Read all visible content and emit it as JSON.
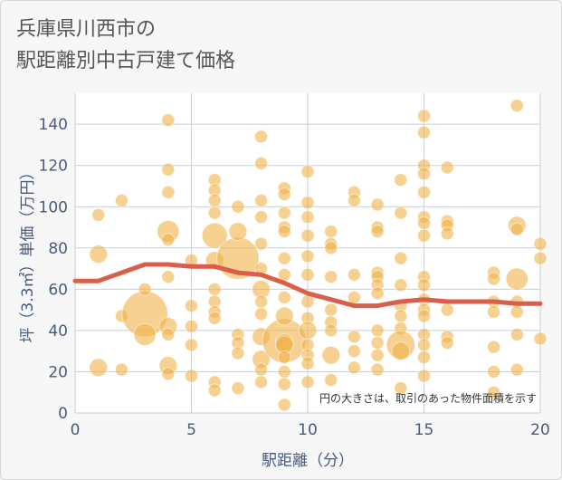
{
  "title_lines": [
    "兵庫県川西市の",
    "駅距離別中古戸建て価格"
  ],
  "annotation": "円の大きさは、取引のあった物件面積を示す",
  "colors": {
    "bubble": "#f0b24a",
    "line": "#d95f4b",
    "grid": "#c7cfd9",
    "plot_bg": "#ffffff"
  },
  "chart_data": {
    "type": "scatter",
    "title": "兵庫県川西市の 駅距離別中古戸建て価格",
    "xlabel": "駅距離（分）",
    "ylabel": "坪（3.3㎡）単価（万円）",
    "xlim": [
      0,
      20
    ],
    "ylim": [
      0,
      155
    ],
    "xticks": [
      0,
      5,
      10,
      15,
      20
    ],
    "yticks": [
      0,
      20,
      40,
      60,
      80,
      100,
      120,
      140
    ],
    "grid": true,
    "points": [
      {
        "x": 1,
        "y": 96,
        "s": 1
      },
      {
        "x": 1,
        "y": 77,
        "s": 2
      },
      {
        "x": 1,
        "y": 22,
        "s": 2
      },
      {
        "x": 2,
        "y": 103,
        "s": 1
      },
      {
        "x": 2,
        "y": 47,
        "s": 1
      },
      {
        "x": 2,
        "y": 21,
        "s": 1
      },
      {
        "x": 3,
        "y": 48,
        "s": 13
      },
      {
        "x": 3,
        "y": 60,
        "s": 1
      },
      {
        "x": 3,
        "y": 38,
        "s": 3
      },
      {
        "x": 4,
        "y": 142,
        "s": 1
      },
      {
        "x": 4,
        "y": 118,
        "s": 1
      },
      {
        "x": 4,
        "y": 107,
        "s": 1
      },
      {
        "x": 4,
        "y": 88,
        "s": 3
      },
      {
        "x": 4,
        "y": 84,
        "s": 1
      },
      {
        "x": 4,
        "y": 66,
        "s": 1
      },
      {
        "x": 4,
        "y": 42,
        "s": 2
      },
      {
        "x": 4,
        "y": 38,
        "s": 1
      },
      {
        "x": 4,
        "y": 23,
        "s": 2
      },
      {
        "x": 4,
        "y": 19,
        "s": 1
      },
      {
        "x": 5,
        "y": 74,
        "s": 1
      },
      {
        "x": 5,
        "y": 52,
        "s": 1
      },
      {
        "x": 5,
        "y": 42,
        "s": 1
      },
      {
        "x": 5,
        "y": 33,
        "s": 1
      },
      {
        "x": 5,
        "y": 18,
        "s": 1
      },
      {
        "x": 6,
        "y": 113,
        "s": 1
      },
      {
        "x": 6,
        "y": 108,
        "s": 1
      },
      {
        "x": 6,
        "y": 103,
        "s": 1
      },
      {
        "x": 6,
        "y": 97,
        "s": 1
      },
      {
        "x": 6,
        "y": 86,
        "s": 4
      },
      {
        "x": 6,
        "y": 74,
        "s": 2
      },
      {
        "x": 6,
        "y": 60,
        "s": 1
      },
      {
        "x": 6,
        "y": 54,
        "s": 1
      },
      {
        "x": 6,
        "y": 49,
        "s": 1
      },
      {
        "x": 6,
        "y": 46,
        "s": 1
      },
      {
        "x": 6,
        "y": 15,
        "s": 1
      },
      {
        "x": 6,
        "y": 11,
        "s": 1
      },
      {
        "x": 7,
        "y": 75,
        "s": 11
      },
      {
        "x": 7,
        "y": 100,
        "s": 1
      },
      {
        "x": 7,
        "y": 88,
        "s": 2
      },
      {
        "x": 7,
        "y": 38,
        "s": 1
      },
      {
        "x": 7,
        "y": 34,
        "s": 1
      },
      {
        "x": 7,
        "y": 29,
        "s": 1
      },
      {
        "x": 7,
        "y": 12,
        "s": 1
      },
      {
        "x": 8,
        "y": 134,
        "s": 1
      },
      {
        "x": 8,
        "y": 121,
        "s": 1
      },
      {
        "x": 8,
        "y": 103,
        "s": 1
      },
      {
        "x": 8,
        "y": 95,
        "s": 1
      },
      {
        "x": 8,
        "y": 82,
        "s": 1
      },
      {
        "x": 8,
        "y": 70,
        "s": 1
      },
      {
        "x": 8,
        "y": 60,
        "s": 2
      },
      {
        "x": 8,
        "y": 54,
        "s": 1
      },
      {
        "x": 8,
        "y": 48,
        "s": 1
      },
      {
        "x": 8,
        "y": 37,
        "s": 2
      },
      {
        "x": 8,
        "y": 26,
        "s": 2
      },
      {
        "x": 8,
        "y": 21,
        "s": 1
      },
      {
        "x": 8,
        "y": 15,
        "s": 1
      },
      {
        "x": 9,
        "y": 35,
        "s": 12
      },
      {
        "x": 9,
        "y": 109,
        "s": 1
      },
      {
        "x": 9,
        "y": 106,
        "s": 1
      },
      {
        "x": 9,
        "y": 97,
        "s": 1
      },
      {
        "x": 9,
        "y": 90,
        "s": 1
      },
      {
        "x": 9,
        "y": 88,
        "s": 1
      },
      {
        "x": 9,
        "y": 75,
        "s": 1
      },
      {
        "x": 9,
        "y": 67,
        "s": 1
      },
      {
        "x": 9,
        "y": 56,
        "s": 1
      },
      {
        "x": 9,
        "y": 47,
        "s": 2
      },
      {
        "x": 9,
        "y": 34,
        "s": 2
      },
      {
        "x": 9,
        "y": 33,
        "s": 2
      },
      {
        "x": 9,
        "y": 27,
        "s": 1
      },
      {
        "x": 9,
        "y": 20,
        "s": 1
      },
      {
        "x": 9,
        "y": 14,
        "s": 1
      },
      {
        "x": 9,
        "y": 4,
        "s": 1
      },
      {
        "x": 10,
        "y": 117,
        "s": 1
      },
      {
        "x": 10,
        "y": 102,
        "s": 1
      },
      {
        "x": 10,
        "y": 95,
        "s": 1
      },
      {
        "x": 10,
        "y": 86,
        "s": 1
      },
      {
        "x": 10,
        "y": 76,
        "s": 1
      },
      {
        "x": 10,
        "y": 67,
        "s": 1
      },
      {
        "x": 10,
        "y": 54,
        "s": 1
      },
      {
        "x": 10,
        "y": 46,
        "s": 1
      },
      {
        "x": 10,
        "y": 40,
        "s": 2
      },
      {
        "x": 10,
        "y": 33,
        "s": 1
      },
      {
        "x": 10,
        "y": 28,
        "s": 1
      },
      {
        "x": 10,
        "y": 24,
        "s": 1
      },
      {
        "x": 10,
        "y": 15,
        "s": 1
      },
      {
        "x": 11,
        "y": 88,
        "s": 1
      },
      {
        "x": 11,
        "y": 82,
        "s": 1
      },
      {
        "x": 11,
        "y": 80,
        "s": 1
      },
      {
        "x": 11,
        "y": 66,
        "s": 1
      },
      {
        "x": 11,
        "y": 50,
        "s": 1
      },
      {
        "x": 11,
        "y": 44,
        "s": 1
      },
      {
        "x": 11,
        "y": 40,
        "s": 1
      },
      {
        "x": 11,
        "y": 28,
        "s": 2
      },
      {
        "x": 11,
        "y": 16,
        "s": 1
      },
      {
        "x": 12,
        "y": 107,
        "s": 1
      },
      {
        "x": 12,
        "y": 103,
        "s": 1
      },
      {
        "x": 12,
        "y": 67,
        "s": 1
      },
      {
        "x": 12,
        "y": 56,
        "s": 1
      },
      {
        "x": 12,
        "y": 37,
        "s": 1
      },
      {
        "x": 12,
        "y": 30,
        "s": 1
      },
      {
        "x": 12,
        "y": 22,
        "s": 1
      },
      {
        "x": 13,
        "y": 101,
        "s": 1
      },
      {
        "x": 13,
        "y": 90,
        "s": 1
      },
      {
        "x": 13,
        "y": 88,
        "s": 1
      },
      {
        "x": 13,
        "y": 68,
        "s": 1
      },
      {
        "x": 13,
        "y": 66,
        "s": 1
      },
      {
        "x": 13,
        "y": 62,
        "s": 1
      },
      {
        "x": 13,
        "y": 58,
        "s": 1
      },
      {
        "x": 13,
        "y": 40,
        "s": 1
      },
      {
        "x": 13,
        "y": 34,
        "s": 1
      },
      {
        "x": 13,
        "y": 28,
        "s": 1
      },
      {
        "x": 13,
        "y": 21,
        "s": 1
      },
      {
        "x": 14,
        "y": 113,
        "s": 1
      },
      {
        "x": 14,
        "y": 97,
        "s": 1
      },
      {
        "x": 14,
        "y": 75,
        "s": 1
      },
      {
        "x": 14,
        "y": 62,
        "s": 1
      },
      {
        "x": 14,
        "y": 52,
        "s": 1
      },
      {
        "x": 14,
        "y": 47,
        "s": 1
      },
      {
        "x": 14,
        "y": 41,
        "s": 1
      },
      {
        "x": 14,
        "y": 33,
        "s": 5
      },
      {
        "x": 14,
        "y": 30,
        "s": 2
      },
      {
        "x": 14,
        "y": 12,
        "s": 1
      },
      {
        "x": 15,
        "y": 144,
        "s": 1
      },
      {
        "x": 15,
        "y": 136,
        "s": 1
      },
      {
        "x": 15,
        "y": 120,
        "s": 1
      },
      {
        "x": 15,
        "y": 116,
        "s": 1
      },
      {
        "x": 15,
        "y": 107,
        "s": 1
      },
      {
        "x": 15,
        "y": 95,
        "s": 1
      },
      {
        "x": 15,
        "y": 92,
        "s": 1
      },
      {
        "x": 15,
        "y": 86,
        "s": 1
      },
      {
        "x": 15,
        "y": 66,
        "s": 1
      },
      {
        "x": 15,
        "y": 62,
        "s": 1
      },
      {
        "x": 15,
        "y": 55,
        "s": 1
      },
      {
        "x": 15,
        "y": 50,
        "s": 1
      },
      {
        "x": 15,
        "y": 47,
        "s": 1
      },
      {
        "x": 15,
        "y": 38,
        "s": 1
      },
      {
        "x": 15,
        "y": 33,
        "s": 1
      },
      {
        "x": 15,
        "y": 27,
        "s": 1
      },
      {
        "x": 15,
        "y": 18,
        "s": 1
      },
      {
        "x": 16,
        "y": 119,
        "s": 1
      },
      {
        "x": 16,
        "y": 93,
        "s": 1
      },
      {
        "x": 16,
        "y": 91,
        "s": 1
      },
      {
        "x": 16,
        "y": 87,
        "s": 1
      },
      {
        "x": 16,
        "y": 50,
        "s": 1
      },
      {
        "x": 16,
        "y": 37,
        "s": 1
      },
      {
        "x": 16,
        "y": 34,
        "s": 1
      },
      {
        "x": 18,
        "y": 68,
        "s": 1
      },
      {
        "x": 18,
        "y": 65,
        "s": 1
      },
      {
        "x": 18,
        "y": 54,
        "s": 1
      },
      {
        "x": 18,
        "y": 49,
        "s": 1
      },
      {
        "x": 18,
        "y": 32,
        "s": 1
      },
      {
        "x": 18,
        "y": 20,
        "s": 1
      },
      {
        "x": 18,
        "y": 10,
        "s": 1
      },
      {
        "x": 19,
        "y": 149,
        "s": 1
      },
      {
        "x": 19,
        "y": 91,
        "s": 2
      },
      {
        "x": 19,
        "y": 89,
        "s": 1
      },
      {
        "x": 19,
        "y": 65,
        "s": 3
      },
      {
        "x": 19,
        "y": 54,
        "s": 1
      },
      {
        "x": 19,
        "y": 49,
        "s": 1
      },
      {
        "x": 19,
        "y": 38,
        "s": 1
      },
      {
        "x": 19,
        "y": 21,
        "s": 1
      },
      {
        "x": 20,
        "y": 82,
        "s": 1
      },
      {
        "x": 20,
        "y": 75,
        "s": 1
      },
      {
        "x": 20,
        "y": 36,
        "s": 1
      }
    ],
    "trend": {
      "x": [
        0,
        1,
        2,
        3,
        4,
        5,
        6,
        7,
        8,
        9,
        10,
        11,
        12,
        13,
        14,
        15,
        16,
        17,
        18,
        19,
        20
      ],
      "y": [
        64,
        64,
        68,
        72,
        72,
        71,
        71,
        68,
        67,
        63,
        58,
        55,
        52,
        52,
        54,
        55,
        54,
        54,
        54,
        53,
        53
      ]
    }
  }
}
